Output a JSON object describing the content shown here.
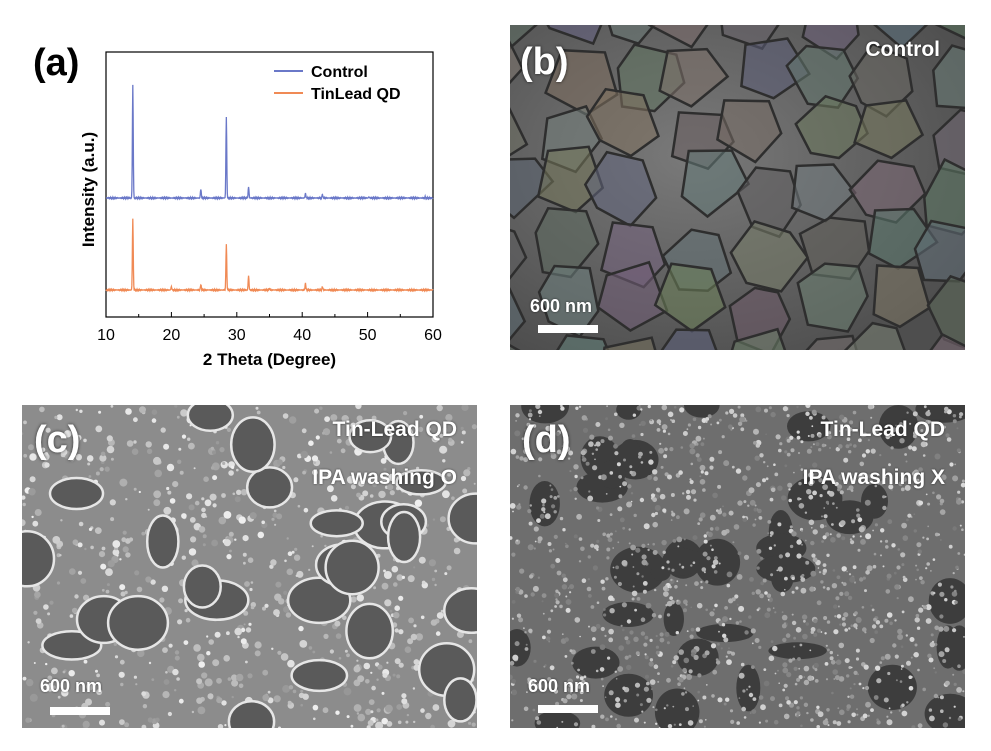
{
  "panels": {
    "a": {
      "label": "(a)"
    },
    "b": {
      "label": "(b)",
      "title": "Control",
      "scale": "600 nm"
    },
    "c": {
      "label": "(c)",
      "title1": "Tin-Lead QD",
      "title2": "IPA washing O",
      "scale": "600 nm"
    },
    "d": {
      "label": "(d)",
      "title1": "Tin-Lead QD",
      "title2": "IPA washing X",
      "scale": "600 nm"
    }
  },
  "chart_data": {
    "type": "line",
    "title": "",
    "xlabel": "2 Theta (Degree)",
    "ylabel": "Intensity (a.u.)",
    "xlim": [
      10,
      60
    ],
    "xticks": [
      10,
      20,
      30,
      40,
      50,
      60
    ],
    "legend": "top-right",
    "series": [
      {
        "name": "Control",
        "color": "#6a78c8",
        "peaks": [
          [
            14.1,
            1.0
          ],
          [
            24.5,
            0.08
          ],
          [
            28.4,
            0.72
          ],
          [
            31.8,
            0.1
          ],
          [
            40.5,
            0.04
          ],
          [
            43.1,
            0.03
          ],
          [
            50.2,
            0.01
          ],
          [
            58.8,
            0.01
          ]
        ]
      },
      {
        "name": "TinLead QD",
        "color": "#f08a55",
        "peaks": [
          [
            14.1,
            0.65
          ],
          [
            20.0,
            0.03
          ],
          [
            24.5,
            0.05
          ],
          [
            28.4,
            0.42
          ],
          [
            31.8,
            0.13
          ],
          [
            35.0,
            0.015
          ],
          [
            40.5,
            0.06
          ],
          [
            43.1,
            0.03
          ]
        ]
      }
    ]
  }
}
